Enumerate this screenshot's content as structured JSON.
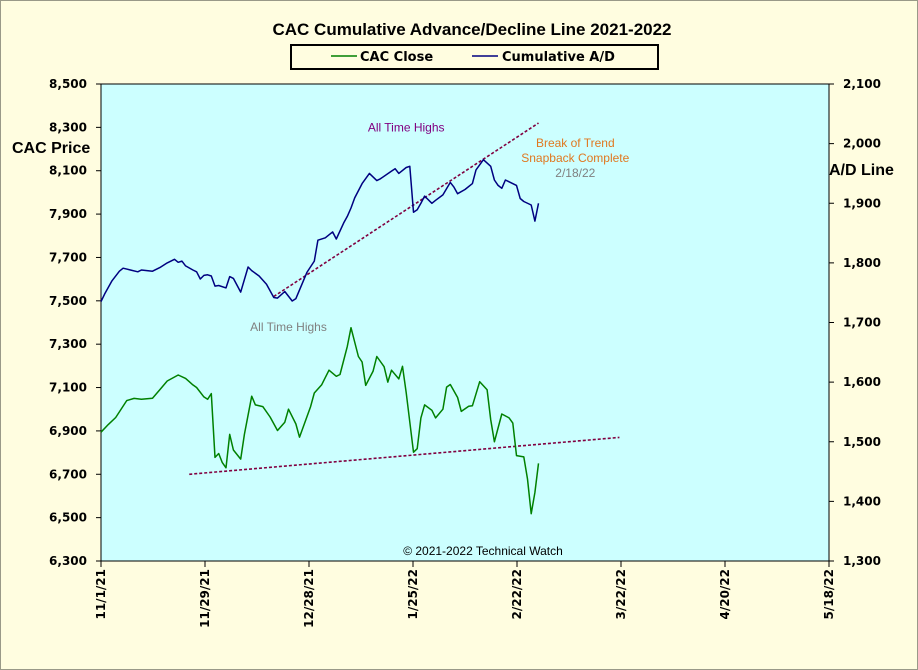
{
  "chart_data": {
    "type": "line",
    "title": "CAC Cumulative  Advance/Decline Line 2021-2022",
    "ylabel_left": "CAC Price",
    "ylabel_right": "A/D Line",
    "legend": {
      "placement": "top-center"
    },
    "grid": false,
    "copyright": "© 2021-2022  Technical Watch",
    "colors": {
      "background": "#fffde0",
      "plot": "#ccffff",
      "cac": "#008000",
      "ad": "#000080",
      "trendline": "#800040",
      "ath_top": "#800080",
      "ath_bottom": "#808080",
      "break_text": "#e07820",
      "date_text": "#808080"
    },
    "x_ticks": [
      "11/1/21",
      "11/29/21",
      "12/28/21",
      "1/25/22",
      "2/22/22",
      "3/22/22",
      "4/20/22",
      "5/18/22"
    ],
    "xlim": [
      "2021-11-01",
      "2022-05-18"
    ],
    "ylim_left": [
      6300,
      8500
    ],
    "y_ticks_left": [
      "6,300",
      "6,500",
      "6,700",
      "6,900",
      "7,100",
      "7,300",
      "7,500",
      "7,700",
      "7,900",
      "8,100",
      "8,300",
      "8,500"
    ],
    "ylim_right": [
      1300,
      2100
    ],
    "y_ticks_right": [
      "1,300",
      "1,400",
      "1,500",
      "1,600",
      "1,700",
      "1,800",
      "1,900",
      "2,000",
      "2,100"
    ],
    "series": [
      {
        "name": "CAC Close",
        "axis": "left",
        "points": [
          [
            "2021-11-01",
            6894
          ],
          [
            "2021-11-03",
            6930
          ],
          [
            "2021-11-05",
            6962
          ],
          [
            "2021-11-08",
            7040
          ],
          [
            "2021-11-10",
            7050
          ],
          [
            "2021-11-12",
            7046
          ],
          [
            "2021-11-15",
            7051
          ],
          [
            "2021-11-17",
            7090
          ],
          [
            "2021-11-19",
            7130
          ],
          [
            "2021-11-22",
            7158
          ],
          [
            "2021-11-24",
            7142
          ],
          [
            "2021-11-26",
            7112
          ],
          [
            "2021-11-27",
            7100
          ],
          [
            "2021-11-29",
            7057
          ],
          [
            "2021-11-30",
            7046
          ],
          [
            "2021-12-01",
            7072
          ],
          [
            "2021-12-02",
            6778
          ],
          [
            "2021-12-03",
            6796
          ],
          [
            "2021-12-04",
            6754
          ],
          [
            "2021-12-05",
            6730
          ],
          [
            "2021-12-06",
            6884
          ],
          [
            "2021-12-07",
            6812
          ],
          [
            "2021-12-09",
            6770
          ],
          [
            "2021-12-10",
            6884
          ],
          [
            "2021-12-12",
            7060
          ],
          [
            "2021-12-13",
            7020
          ],
          [
            "2021-12-15",
            7012
          ],
          [
            "2021-12-17",
            6964
          ],
          [
            "2021-12-19",
            6902
          ],
          [
            "2021-12-21",
            6940
          ],
          [
            "2021-12-22",
            7000
          ],
          [
            "2021-12-24",
            6932
          ],
          [
            "2021-12-25",
            6871
          ],
          [
            "2021-12-28",
            7012
          ],
          [
            "2021-12-29",
            7075
          ],
          [
            "2021-12-31",
            7112
          ],
          [
            "2022-01-02",
            7180
          ],
          [
            "2022-01-04",
            7152
          ],
          [
            "2022-01-05",
            7160
          ],
          [
            "2022-01-07",
            7290
          ],
          [
            "2022-01-08",
            7376
          ],
          [
            "2022-01-10",
            7243
          ],
          [
            "2022-01-11",
            7218
          ],
          [
            "2022-01-12",
            7110
          ],
          [
            "2022-01-14",
            7176
          ],
          [
            "2022-01-15",
            7243
          ],
          [
            "2022-01-17",
            7196
          ],
          [
            "2022-01-18",
            7125
          ],
          [
            "2022-01-19",
            7180
          ],
          [
            "2022-01-21",
            7140
          ],
          [
            "2022-01-22",
            7198
          ],
          [
            "2022-01-23",
            7076
          ],
          [
            "2022-01-25",
            6802
          ],
          [
            "2022-01-26",
            6818
          ],
          [
            "2022-01-27",
            6960
          ],
          [
            "2022-01-28",
            7020
          ],
          [
            "2022-01-30",
            6995
          ],
          [
            "2022-01-31",
            6960
          ],
          [
            "2022-02-02",
            7000
          ],
          [
            "2022-02-03",
            7102
          ],
          [
            "2022-02-04",
            7114
          ],
          [
            "2022-02-06",
            7054
          ],
          [
            "2022-02-07",
            6990
          ],
          [
            "2022-02-09",
            7014
          ],
          [
            "2022-02-10",
            7016
          ],
          [
            "2022-02-12",
            7127
          ],
          [
            "2022-02-14",
            7090
          ],
          [
            "2022-02-15",
            6952
          ],
          [
            "2022-02-16",
            6850
          ],
          [
            "2022-02-18",
            6978
          ],
          [
            "2022-02-20",
            6960
          ],
          [
            "2022-02-21",
            6936
          ],
          [
            "2022-02-22",
            6786
          ],
          [
            "2022-02-24",
            6780
          ],
          [
            "2022-02-25",
            6678
          ],
          [
            "2022-02-26",
            6518
          ],
          [
            "2022-02-27",
            6616
          ],
          [
            "2022-02-28",
            6750
          ]
        ]
      },
      {
        "name": "Cumulative A/D",
        "axis": "right",
        "points": [
          [
            "2021-11-01",
            1735
          ],
          [
            "2021-11-02",
            1748
          ],
          [
            "2021-11-04",
            1770
          ],
          [
            "2021-11-06",
            1786
          ],
          [
            "2021-11-07",
            1791
          ],
          [
            "2021-11-09",
            1788
          ],
          [
            "2021-11-11",
            1785
          ],
          [
            "2021-11-12",
            1788
          ],
          [
            "2021-11-15",
            1786
          ],
          [
            "2021-11-17",
            1792
          ],
          [
            "2021-11-19",
            1800
          ],
          [
            "2021-11-21",
            1806
          ],
          [
            "2021-11-22",
            1801
          ],
          [
            "2021-11-23",
            1803
          ],
          [
            "2021-11-24",
            1795
          ],
          [
            "2021-11-26",
            1788
          ],
          [
            "2021-11-27",
            1785
          ],
          [
            "2021-11-28",
            1773
          ],
          [
            "2021-11-29",
            1779
          ],
          [
            "2021-11-30",
            1780
          ],
          [
            "2021-12-01",
            1778
          ],
          [
            "2021-12-02",
            1761
          ],
          [
            "2021-12-03",
            1762
          ],
          [
            "2021-12-05",
            1758
          ],
          [
            "2021-12-06",
            1777
          ],
          [
            "2021-12-07",
            1774
          ],
          [
            "2021-12-09",
            1751
          ],
          [
            "2021-12-11",
            1793
          ],
          [
            "2021-12-12",
            1787
          ],
          [
            "2021-12-14",
            1778
          ],
          [
            "2021-12-16",
            1764
          ],
          [
            "2021-12-18",
            1742
          ],
          [
            "2021-12-19",
            1741
          ],
          [
            "2021-12-21",
            1752
          ],
          [
            "2021-12-23",
            1736
          ],
          [
            "2021-12-24",
            1740
          ],
          [
            "2021-12-27",
            1784
          ],
          [
            "2021-12-29",
            1803
          ],
          [
            "2021-12-30",
            1838
          ],
          [
            "2022-01-01",
            1842
          ],
          [
            "2022-01-03",
            1852
          ],
          [
            "2022-01-04",
            1840
          ],
          [
            "2022-01-06",
            1867
          ],
          [
            "2022-01-07",
            1878
          ],
          [
            "2022-01-08",
            1892
          ],
          [
            "2022-01-09",
            1909
          ],
          [
            "2022-01-11",
            1933
          ],
          [
            "2022-01-13",
            1950
          ],
          [
            "2022-01-15",
            1938
          ],
          [
            "2022-01-16",
            1941
          ],
          [
            "2022-01-19",
            1954
          ],
          [
            "2022-01-20",
            1958
          ],
          [
            "2022-01-21",
            1950
          ],
          [
            "2022-01-23",
            1960
          ],
          [
            "2022-01-24",
            1962
          ],
          [
            "2022-01-25",
            1885
          ],
          [
            "2022-01-26",
            1889
          ],
          [
            "2022-01-27",
            1900
          ],
          [
            "2022-01-28",
            1912
          ],
          [
            "2022-01-30",
            1900
          ],
          [
            "2022-01-31",
            1905
          ],
          [
            "2022-02-02",
            1914
          ],
          [
            "2022-02-04",
            1935
          ],
          [
            "2022-02-05",
            1927
          ],
          [
            "2022-02-06",
            1916
          ],
          [
            "2022-02-08",
            1923
          ],
          [
            "2022-02-10",
            1933
          ],
          [
            "2022-02-11",
            1956
          ],
          [
            "2022-02-13",
            1973
          ],
          [
            "2022-02-15",
            1962
          ],
          [
            "2022-02-16",
            1939
          ],
          [
            "2022-02-17",
            1930
          ],
          [
            "2022-02-18",
            1925
          ],
          [
            "2022-02-19",
            1939
          ],
          [
            "2022-02-20",
            1936
          ],
          [
            "2022-02-22",
            1930
          ],
          [
            "2022-02-23",
            1908
          ],
          [
            "2022-02-24",
            1903
          ],
          [
            "2022-02-26",
            1897
          ],
          [
            "2022-02-27",
            1870
          ],
          [
            "2022-02-28",
            1900
          ]
        ]
      }
    ],
    "trendlines": [
      {
        "axis": "left",
        "start": [
          "2021-12-18",
          7520
        ],
        "end": [
          "2022-02-28",
          8320
        ]
      },
      {
        "axis": "left",
        "start": [
          "2021-11-25",
          6700
        ],
        "end": [
          "2022-03-22",
          6870
        ]
      }
    ],
    "annotations": [
      {
        "text": "All Time Highs",
        "color": "ath_top",
        "at": [
          "2022-01-23",
          8280
        ]
      },
      {
        "text": "Break of Trend",
        "color": "break_text",
        "at": [
          "2022-03-10",
          8210
        ]
      },
      {
        "text": "Snapback Complete",
        "color": "break_text",
        "at": [
          "2022-03-10",
          8140
        ]
      },
      {
        "text": "2/18/22",
        "color": "date_text",
        "at": [
          "2022-03-10",
          8070
        ]
      },
      {
        "text": "All Time Highs",
        "color": "ath_bottom",
        "at": [
          "2021-12-22",
          7360
        ]
      }
    ]
  }
}
